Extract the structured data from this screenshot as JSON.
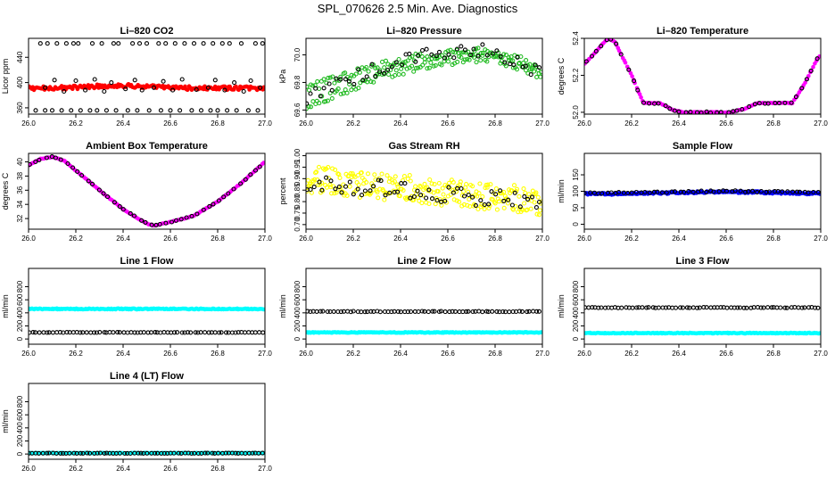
{
  "figure": {
    "title": "SPL_070626  2.5 Min. Ave. Diagnostics"
  },
  "chart_data": [
    {
      "type": "scatter",
      "title": "Li–820 CO2",
      "xlabel": "",
      "ylabel": "Licor ppm",
      "xlim": [
        26.0,
        27.0
      ],
      "ylim": [
        350,
        470
      ],
      "xticks": [
        26.0,
        26.2,
        26.4,
        26.6,
        26.8,
        27.0
      ],
      "xtick_labels": [
        "26.0",
        "26.2",
        "26.4",
        "26.6",
        "26.8",
        "27.0"
      ],
      "yticks": [
        360,
        400,
        440
      ],
      "ytick_labels": [
        "360",
        "400",
        "440"
      ],
      "series": [
        {
          "name": "2.5 min ave",
          "color": "#ff0000",
          "marker": "filled",
          "generate": {
            "kind": "bump",
            "base": 391,
            "amp": 4,
            "center": 26.38,
            "width": 0.18,
            "noise": 3,
            "n": 180
          }
        },
        {
          "name": "black",
          "color": "#000000",
          "marker": "open",
          "x": [
            26.05,
            26.08,
            26.12,
            26.16,
            26.19,
            26.21,
            26.27,
            26.31,
            26.36,
            26.38,
            26.44,
            26.47,
            26.5,
            26.55,
            26.58,
            26.62,
            26.66,
            26.7,
            26.74,
            26.78,
            26.82,
            26.85,
            26.9,
            26.96,
            26.99,
            26.03,
            26.07,
            26.1,
            26.14,
            26.18,
            26.22,
            26.26,
            26.29,
            26.33,
            26.37,
            26.42,
            26.46,
            26.51,
            26.56,
            26.6,
            26.64,
            26.69,
            26.73,
            26.77,
            26.8,
            26.84,
            26.88,
            26.93,
            26.97,
            26.07,
            26.11,
            26.15,
            26.2,
            26.24,
            26.28,
            26.32,
            26.35,
            26.41,
            26.45,
            26.48,
            26.53,
            26.57,
            26.61,
            26.65,
            26.71,
            26.76,
            26.79,
            26.83,
            26.87,
            26.91,
            26.94,
            26.98
          ],
          "y": [
            462,
            462,
            462,
            462,
            462,
            462,
            462,
            462,
            462,
            462,
            462,
            462,
            462,
            462,
            462,
            462,
            462,
            462,
            462,
            462,
            462,
            462,
            462,
            462,
            462,
            356,
            356,
            356,
            356,
            356,
            356,
            356,
            356,
            356,
            356,
            356,
            356,
            356,
            356,
            356,
            356,
            356,
            356,
            356,
            356,
            356,
            356,
            356,
            356,
            392,
            404,
            386,
            403,
            388,
            405,
            386,
            400,
            390,
            404,
            388,
            392,
            402,
            388,
            405,
            389,
            392,
            404,
            388,
            400,
            386,
            403,
            392
          ]
        }
      ]
    },
    {
      "type": "scatter",
      "title": "Li–820 Pressure",
      "xlabel": "",
      "ylabel": "kPa",
      "xlim": [
        26.0,
        27.0
      ],
      "ylim": [
        69.57,
        70.12
      ],
      "xticks": [
        26.0,
        26.2,
        26.4,
        26.6,
        26.8,
        27.0
      ],
      "xtick_labels": [
        "26.0",
        "26.2",
        "26.4",
        "26.6",
        "26.8",
        "27.0"
      ],
      "yticks": [
        69.6,
        69.8,
        70.0
      ],
      "ytick_labels": [
        "69.6",
        "69.8",
        "70.0"
      ],
      "series": [
        {
          "name": "upper band",
          "color": "#22bb22",
          "marker": "open",
          "generate": {
            "kind": "arch",
            "start": 69.75,
            "peak": 70.02,
            "peak_x": 26.72,
            "end": 69.9,
            "noise": 0.03,
            "n": 110
          }
        },
        {
          "name": "lower band",
          "color": "#22bb22",
          "marker": "open",
          "generate": {
            "kind": "arch",
            "start": 69.63,
            "peak": 69.97,
            "peak_x": 26.75,
            "end": 69.84,
            "noise": 0.03,
            "n": 110
          }
        },
        {
          "name": "black",
          "color": "#000000",
          "marker": "open",
          "generate": {
            "kind": "arch",
            "start": 69.69,
            "peak": 70.03,
            "peak_x": 26.72,
            "end": 69.86,
            "noise": 0.05,
            "n": 55
          }
        }
      ]
    },
    {
      "type": "scatter",
      "title": "Li–820 Temperature",
      "xlabel": "",
      "ylabel": "degrees C",
      "xlim": [
        26.0,
        27.0
      ],
      "ylim": [
        51.99,
        52.4
      ],
      "xticks": [
        26.0,
        26.2,
        26.4,
        26.6,
        26.8,
        27.0
      ],
      "xtick_labels": [
        "26.0",
        "26.2",
        "26.4",
        "26.6",
        "26.8",
        "27.0"
      ],
      "yticks": [
        52.0,
        52.2,
        52.4
      ],
      "ytick_labels": [
        "52.0",
        "52.2",
        "52.4"
      ],
      "series": [
        {
          "name": "magenta",
          "color": "#ff00ff",
          "marker": "filled",
          "generate": {
            "kind": "pts",
            "noise": 0.002,
            "n": 150,
            "pts": [
              [
                26.0,
                52.26
              ],
              [
                26.1,
                52.4
              ],
              [
                26.13,
                52.38
              ],
              [
                26.2,
                52.2
              ],
              [
                26.25,
                52.05
              ],
              [
                26.32,
                52.05
              ],
              [
                26.38,
                52.01
              ],
              [
                26.42,
                52.0
              ],
              [
                26.62,
                52.0
              ],
              [
                26.68,
                52.02
              ],
              [
                26.73,
                52.05
              ],
              [
                26.88,
                52.05
              ],
              [
                26.93,
                52.15
              ],
              [
                26.99,
                52.3
              ]
            ]
          }
        },
        {
          "name": "black",
          "color": "#000000",
          "marker": "open",
          "generate": {
            "kind": "pts",
            "noise": 0.003,
            "n": 45,
            "pts": [
              [
                26.0,
                52.26
              ],
              [
                26.1,
                52.4
              ],
              [
                26.13,
                52.38
              ],
              [
                26.2,
                52.2
              ],
              [
                26.25,
                52.05
              ],
              [
                26.32,
                52.05
              ],
              [
                26.38,
                52.01
              ],
              [
                26.42,
                52.0
              ],
              [
                26.62,
                52.0
              ],
              [
                26.68,
                52.02
              ],
              [
                26.73,
                52.05
              ],
              [
                26.88,
                52.05
              ],
              [
                26.93,
                52.15
              ],
              [
                26.99,
                52.3
              ]
            ]
          }
        }
      ]
    },
    {
      "type": "scatter",
      "title": "Ambient Box Temperature",
      "xlabel": "",
      "ylabel": "degrees C",
      "xlim": [
        26.0,
        27.0
      ],
      "ylim": [
        30.5,
        41.2
      ],
      "xticks": [
        26.0,
        26.2,
        26.4,
        26.6,
        26.8,
        27.0
      ],
      "xtick_labels": [
        "26.0",
        "26.2",
        "26.4",
        "26.6",
        "26.8",
        "27.0"
      ],
      "yticks": [
        32,
        34,
        36,
        38,
        40
      ],
      "ytick_labels": [
        "32",
        "34",
        "36",
        "38",
        "40"
      ],
      "series": [
        {
          "name": "magenta",
          "color": "#ff00ff",
          "marker": "filled",
          "generate": {
            "kind": "pts",
            "noise": 0.05,
            "n": 160,
            "pts": [
              [
                26.0,
                39.5
              ],
              [
                26.05,
                40.4
              ],
              [
                26.1,
                40.7
              ],
              [
                26.15,
                40.2
              ],
              [
                26.2,
                38.8
              ],
              [
                26.3,
                36.0
              ],
              [
                26.4,
                33.3
              ],
              [
                26.5,
                31.3
              ],
              [
                26.53,
                31.0
              ],
              [
                26.6,
                31.5
              ],
              [
                26.7,
                32.4
              ],
              [
                26.8,
                34.4
              ],
              [
                26.9,
                37.0
              ],
              [
                27.0,
                40.0
              ]
            ]
          }
        },
        {
          "name": "black",
          "color": "#000000",
          "marker": "open",
          "generate": {
            "kind": "pts",
            "noise": 0.05,
            "n": 45,
            "pts": [
              [
                26.0,
                39.5
              ],
              [
                26.05,
                40.4
              ],
              [
                26.1,
                40.7
              ],
              [
                26.15,
                40.2
              ],
              [
                26.2,
                38.8
              ],
              [
                26.3,
                36.0
              ],
              [
                26.4,
                33.3
              ],
              [
                26.5,
                31.3
              ],
              [
                26.53,
                31.0
              ],
              [
                26.6,
                31.5
              ],
              [
                26.7,
                32.4
              ],
              [
                26.8,
                34.4
              ],
              [
                26.9,
                37.0
              ],
              [
                27.0,
                40.0
              ]
            ]
          }
        }
      ]
    },
    {
      "type": "scatter",
      "title": "Gas Stream RH",
      "xlabel": "",
      "ylabel": "percent",
      "xlim": [
        26.0,
        27.0
      ],
      "ylim": [
        0.68,
        1.01
      ],
      "xticks": [
        26.0,
        26.2,
        26.4,
        26.6,
        26.8,
        27.0
      ],
      "xtick_labels": [
        "26.0",
        "26.2",
        "26.4",
        "26.6",
        "26.8",
        "27.0"
      ],
      "yticks": [
        0.7,
        0.75,
        0.8,
        0.85,
        0.9,
        0.95,
        1.0
      ],
      "ytick_labels": [
        "0.70",
        "0.75",
        "0.80",
        "0.85",
        "0.90",
        "0.95",
        "1.00"
      ],
      "series": [
        {
          "name": "yellow",
          "color": "#ffff00",
          "marker": "open",
          "generate": {
            "kind": "line",
            "start": 0.9,
            "end": 0.8,
            "noise": 0.06,
            "n": 260
          }
        },
        {
          "name": "black",
          "color": "#000000",
          "marker": "open",
          "generate": {
            "kind": "line",
            "start": 0.89,
            "end": 0.79,
            "noise": 0.04,
            "n": 60
          }
        }
      ]
    },
    {
      "type": "scatter",
      "title": "Sample Flow",
      "xlabel": "",
      "ylabel": "ml/min",
      "xlim": [
        26.0,
        27.0
      ],
      "ylim": [
        -15,
        215
      ],
      "xticks": [
        26.0,
        26.2,
        26.4,
        26.6,
        26.8,
        27.0
      ],
      "xtick_labels": [
        "26.0",
        "26.2",
        "26.4",
        "26.6",
        "26.8",
        "27.0"
      ],
      "yticks": [
        0,
        50,
        100,
        150
      ],
      "ytick_labels": [
        "0",
        "50",
        "100",
        "150"
      ],
      "series": [
        {
          "name": "blue",
          "color": "#0000ff",
          "marker": "filled",
          "generate": {
            "kind": "bump",
            "base": 92,
            "amp": 6,
            "center": 26.6,
            "width": 0.3,
            "noise": 3,
            "n": 220
          }
        },
        {
          "name": "black",
          "color": "#000000",
          "marker": "open",
          "generate": {
            "kind": "bump",
            "base": 95,
            "amp": 5,
            "center": 26.6,
            "width": 0.3,
            "noise": 2,
            "n": 55
          }
        }
      ]
    },
    {
      "type": "scatter",
      "title": "Line 1 Flow",
      "xlabel": "",
      "ylabel": "ml/min",
      "xlim": [
        26.0,
        27.0
      ],
      "ylim": [
        -80,
        1080
      ],
      "xticks": [
        26.0,
        26.2,
        26.4,
        26.6,
        26.8,
        27.0
      ],
      "xtick_labels": [
        "26.0",
        "26.2",
        "26.4",
        "26.6",
        "26.8",
        "27.0"
      ],
      "yticks": [
        0,
        200,
        400,
        600,
        800
      ],
      "ytick_labels": [
        "0",
        "200",
        "400",
        "600",
        "800"
      ],
      "series": [
        {
          "name": "cyan",
          "color": "#00ffff",
          "marker": "filled",
          "generate": {
            "kind": "flat",
            "base": 460,
            "noise": 8,
            "n": 220
          }
        },
        {
          "name": "black",
          "color": "#000000",
          "marker": "open",
          "generate": {
            "kind": "flat",
            "base": 100,
            "noise": 3,
            "n": 70
          }
        }
      ]
    },
    {
      "type": "scatter",
      "title": "Line 2 Flow",
      "xlabel": "",
      "ylabel": "ml/min",
      "xlim": [
        26.0,
        27.0
      ],
      "ylim": [
        -80,
        1080
      ],
      "xticks": [
        26.0,
        26.2,
        26.4,
        26.6,
        26.8,
        27.0
      ],
      "xtick_labels": [
        "26.0",
        "26.2",
        "26.4",
        "26.6",
        "26.8",
        "27.0"
      ],
      "yticks": [
        0,
        200,
        400,
        600,
        800
      ],
      "ytick_labels": [
        "0",
        "200",
        "400",
        "600",
        "800"
      ],
      "series": [
        {
          "name": "cyan",
          "color": "#00ffff",
          "marker": "filled",
          "generate": {
            "kind": "flat",
            "base": 100,
            "noise": 6,
            "n": 220
          }
        },
        {
          "name": "black",
          "color": "#000000",
          "marker": "open",
          "generate": {
            "kind": "flat",
            "base": 420,
            "noise": 5,
            "n": 70
          }
        }
      ]
    },
    {
      "type": "scatter",
      "title": "Line 3 Flow",
      "xlabel": "",
      "ylabel": "ml/min",
      "xlim": [
        26.0,
        27.0
      ],
      "ylim": [
        -80,
        1080
      ],
      "xticks": [
        26.0,
        26.2,
        26.4,
        26.6,
        26.8,
        27.0
      ],
      "xtick_labels": [
        "26.0",
        "26.2",
        "26.4",
        "26.6",
        "26.8",
        "27.0"
      ],
      "yticks": [
        0,
        200,
        400,
        600,
        800
      ],
      "ytick_labels": [
        "0",
        "200",
        "400",
        "600",
        "800"
      ],
      "series": [
        {
          "name": "cyan",
          "color": "#00ffff",
          "marker": "filled",
          "generate": {
            "kind": "flat",
            "base": 90,
            "noise": 6,
            "n": 220
          }
        },
        {
          "name": "black",
          "color": "#000000",
          "marker": "open",
          "generate": {
            "kind": "flat",
            "base": 480,
            "noise": 5,
            "n": 70
          }
        }
      ]
    },
    {
      "type": "scatter",
      "title": "Line 4 (LT) Flow",
      "xlabel": "",
      "ylabel": "ml/min",
      "xlim": [
        26.0,
        27.0
      ],
      "ylim": [
        -80,
        1080
      ],
      "xticks": [
        26.0,
        26.2,
        26.4,
        26.6,
        26.8,
        27.0
      ],
      "xtick_labels": [
        "26.0",
        "26.2",
        "26.4",
        "26.6",
        "26.8",
        "27.0"
      ],
      "yticks": [
        0,
        200,
        400,
        600,
        800
      ],
      "ytick_labels": [
        "0",
        "200",
        "400",
        "600",
        "800"
      ],
      "series": [
        {
          "name": "cyan",
          "color": "#00ffff",
          "marker": "filled",
          "generate": {
            "kind": "flat",
            "base": 15,
            "noise": 4,
            "n": 200
          }
        },
        {
          "name": "black",
          "color": "#000000",
          "marker": "open",
          "generate": {
            "kind": "flat",
            "base": 12,
            "noise": 3,
            "n": 70
          }
        }
      ]
    }
  ]
}
